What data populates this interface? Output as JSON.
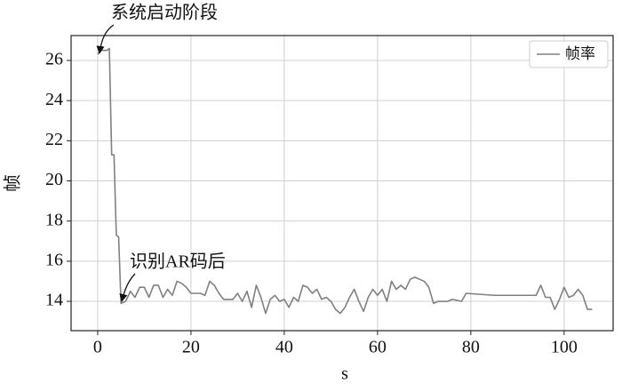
{
  "chart_data": {
    "type": "line",
    "xlabel": "s",
    "ylabel": "帧",
    "x": [
      0,
      0.5,
      2,
      2.5,
      3,
      3.5,
      4,
      4.5,
      5,
      6,
      7,
      8,
      9,
      10,
      11,
      12,
      13,
      14,
      15,
      16,
      17,
      18,
      19,
      20,
      22,
      23,
      24,
      25,
      26,
      27,
      29,
      30,
      31,
      32,
      33,
      34,
      35,
      36,
      37,
      38,
      39,
      40,
      41,
      42,
      43,
      44,
      45,
      46,
      47,
      48,
      49,
      50,
      51,
      52,
      53,
      54,
      55,
      56,
      57,
      58,
      59,
      60,
      61,
      62,
      63,
      64,
      65,
      66,
      67,
      68,
      69,
      70,
      71,
      72,
      73,
      75,
      76,
      78,
      79,
      85,
      94,
      95,
      96,
      97,
      98,
      99,
      100,
      101,
      102,
      103,
      104,
      105,
      106
    ],
    "series": [
      {
        "name": "帧率",
        "color": "#808080",
        "values": [
          26.3,
          26.5,
          26.5,
          26.6,
          21.3,
          21.3,
          17.3,
          17.2,
          13.9,
          14.0,
          14.5,
          14.2,
          14.7,
          14.7,
          14.2,
          14.8,
          14.8,
          14.2,
          14.6,
          14.3,
          15.0,
          14.9,
          14.7,
          14.4,
          14.4,
          14.3,
          15.0,
          14.8,
          14.4,
          14.1,
          14.1,
          14.4,
          14.0,
          14.5,
          13.7,
          14.8,
          14.2,
          13.4,
          14.1,
          14.3,
          14.0,
          14.1,
          13.7,
          14.2,
          14.0,
          14.8,
          14.7,
          14.4,
          14.6,
          14.1,
          14.2,
          14.0,
          13.6,
          13.4,
          13.7,
          14.2,
          14.6,
          14.0,
          13.5,
          14.2,
          14.6,
          14.3,
          14.6,
          14.0,
          15.0,
          14.6,
          14.8,
          14.6,
          15.1,
          15.2,
          15.1,
          15.0,
          14.7,
          13.9,
          14.0,
          14.0,
          14.1,
          14.0,
          14.4,
          14.3,
          14.3,
          14.8,
          14.2,
          14.2,
          13.6,
          14.1,
          14.7,
          14.2,
          14.3,
          14.6,
          14.3,
          13.6,
          13.6
        ]
      }
    ],
    "xlim": [
      -5.7,
      110.5
    ],
    "ylim": [
      12.54,
      27.24
    ],
    "xticks": [
      0,
      20,
      40,
      60,
      80,
      100
    ],
    "yticks": [
      14,
      16,
      18,
      20,
      22,
      24,
      26
    ],
    "grid": true,
    "legend": "upper right",
    "annotations": [
      "系统启动阶段",
      "识别AR码后"
    ]
  }
}
